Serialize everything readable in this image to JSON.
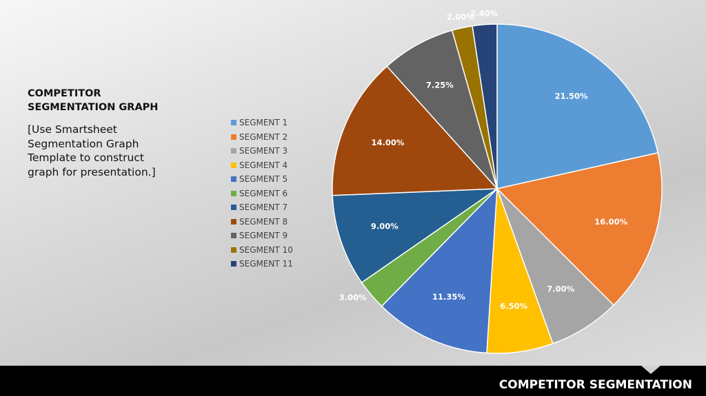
{
  "slide": {
    "title": "COMPETITOR\nSEGMENTATION GRAPH",
    "body": "[Use Smartsheet\nSegmentation Graph\nTemplate to construct\ngraph for presentation.]",
    "footer_title": "COMPETITOR SEGMENTATION"
  },
  "chart_data": {
    "type": "pie",
    "legend_position": "left",
    "categories": [
      "SEGMENT 1",
      "SEGMENT 2",
      "SEGMENT 3",
      "SEGMENT 4",
      "SEGMENT 5",
      "SEGMENT 6",
      "SEGMENT 7",
      "SEGMENT 8",
      "SEGMENT 9",
      "SEGMENT 10",
      "SEGMENT 11"
    ],
    "values": [
      21.5,
      16.0,
      7.0,
      6.5,
      11.35,
      3.0,
      9.0,
      14.0,
      7.25,
      2.0,
      2.4
    ],
    "data_labels": [
      "21.50%",
      "16.00%",
      "7.00%",
      "6.50%",
      "11.35%",
      "3.00%",
      "9.00%",
      "14.00%",
      "7.25%",
      "2.00%",
      "2.40%"
    ],
    "colors": [
      "#5B9BD5",
      "#ED7D31",
      "#A5A5A5",
      "#FFC000",
      "#4472C4",
      "#70AD47",
      "#255E91",
      "#9E480E",
      "#636363",
      "#997300",
      "#264478"
    ]
  }
}
